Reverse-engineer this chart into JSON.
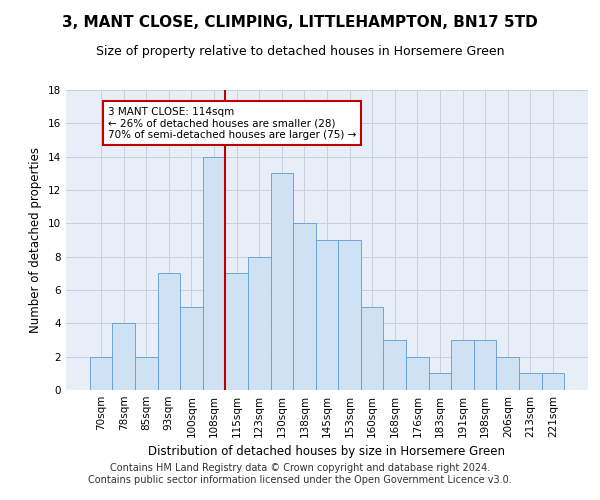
{
  "title": "3, MANT CLOSE, CLIMPING, LITTLEHAMPTON, BN17 5TD",
  "subtitle": "Size of property relative to detached houses in Horsemere Green",
  "xlabel": "Distribution of detached houses by size in Horsemere Green",
  "ylabel": "Number of detached properties",
  "footer_line1": "Contains HM Land Registry data © Crown copyright and database right 2024.",
  "footer_line2": "Contains public sector information licensed under the Open Government Licence v3.0.",
  "categories": [
    "70sqm",
    "78sqm",
    "85sqm",
    "93sqm",
    "100sqm",
    "108sqm",
    "115sqm",
    "123sqm",
    "130sqm",
    "138sqm",
    "145sqm",
    "153sqm",
    "160sqm",
    "168sqm",
    "176sqm",
    "183sqm",
    "191sqm",
    "198sqm",
    "206sqm",
    "213sqm",
    "221sqm"
  ],
  "values": [
    2,
    4,
    2,
    7,
    5,
    14,
    7,
    8,
    13,
    10,
    9,
    9,
    5,
    3,
    2,
    1,
    3,
    3,
    2,
    1,
    1
  ],
  "bar_color": "#cfe2f3",
  "bar_edge_color": "#5b9bd5",
  "vline_color": "#c00000",
  "annotation_text": "3 MANT CLOSE: 114sqm\n← 26% of detached houses are smaller (28)\n70% of semi-detached houses are larger (75) →",
  "annotation_box_color": "#ffffff",
  "annotation_box_edge": "#c00000",
  "ylim": [
    0,
    18
  ],
  "yticks": [
    0,
    2,
    4,
    6,
    8,
    10,
    12,
    14,
    16,
    18
  ],
  "background_color": "#ffffff",
  "plot_bg_color": "#e8eef8",
  "grid_color": "#c8d0dc",
  "title_fontsize": 11,
  "subtitle_fontsize": 9,
  "axis_label_fontsize": 8.5,
  "tick_fontsize": 7.5,
  "footer_fontsize": 7
}
